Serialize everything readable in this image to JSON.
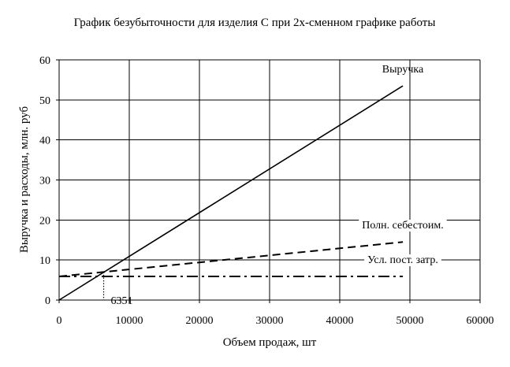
{
  "chart_data": {
    "type": "line",
    "title": "График безубыточности для изделия С при 2х-сменном графике работы",
    "xlabel": "Объем продаж, шт",
    "ylabel": "Выручка и расходы, млн. руб",
    "xlim": [
      0,
      60000
    ],
    "ylim": [
      0,
      60
    ],
    "x_ticks": [
      "0",
      "10000",
      "20000",
      "30000",
      "40000",
      "50000",
      "60000"
    ],
    "y_ticks": [
      "0",
      "10",
      "20",
      "30",
      "40",
      "50",
      "60"
    ],
    "grid": true,
    "series": [
      {
        "name": "Выручка",
        "style": "solid",
        "x": [
          0,
          49000
        ],
        "y": [
          0,
          53.5
        ]
      },
      {
        "name": "Полн. себестоим.",
        "style": "dashed",
        "x": [
          0,
          49000
        ],
        "y": [
          5.9,
          14.5
        ]
      },
      {
        "name": "Усл. пост. затр.",
        "style": "dashdot",
        "x": [
          0,
          49000
        ],
        "y": [
          5.9,
          5.9
        ]
      }
    ],
    "annotations": [
      {
        "text": "6351",
        "x": 6351
      }
    ],
    "colors": {
      "line": "#000000",
      "background": "#ffffff"
    }
  }
}
